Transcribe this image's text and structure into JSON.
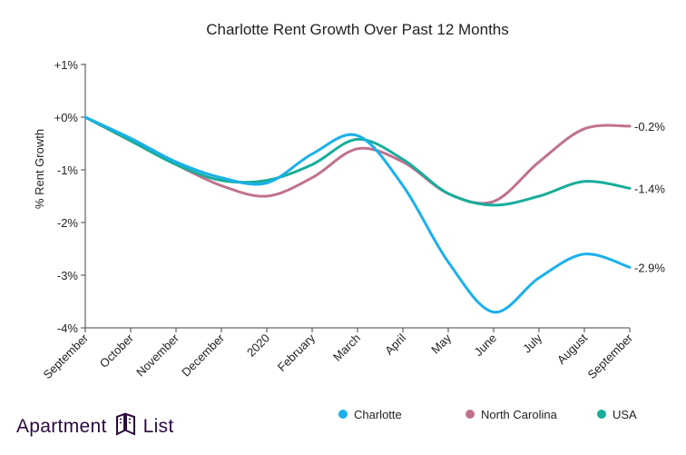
{
  "colors": {
    "Charlotte": "#1bb0ec",
    "North Carolina": "#c0728e",
    "USA": "#18ad9a"
  },
  "logo": {
    "word1": "Apartment",
    "word2": "List"
  },
  "chart_data": {
    "type": "line",
    "title": "Charlotte Rent Growth Over Past 12 Months",
    "xlabel": "",
    "ylabel": "% Rent Growth",
    "categories": [
      "September",
      "October",
      "November",
      "December",
      "2020",
      "February",
      "March",
      "April",
      "May",
      "June",
      "July",
      "August",
      "September"
    ],
    "ylim": [
      -4,
      1
    ],
    "yticks": [
      {
        "value": 1,
        "label": "+1%"
      },
      {
        "value": 0,
        "label": "+0%"
      },
      {
        "value": -1,
        "label": "-1%"
      },
      {
        "value": -2,
        "label": "-2%"
      },
      {
        "value": -3,
        "label": "-3%"
      },
      {
        "value": -4,
        "label": "-4%"
      }
    ],
    "grid": false,
    "legend_position": "bottom-right",
    "series": [
      {
        "name": "Charlotte",
        "values": [
          0,
          -0.4,
          -0.85,
          -1.15,
          -1.25,
          -0.7,
          -0.35,
          -1.3,
          -2.75,
          -3.7,
          -3.05,
          -2.6,
          -2.85
        ],
        "end_label": "-2.9%"
      },
      {
        "name": "North Carolina",
        "values": [
          0,
          -0.45,
          -0.9,
          -1.3,
          -1.5,
          -1.15,
          -0.6,
          -0.85,
          -1.45,
          -1.6,
          -0.85,
          -0.22,
          -0.17
        ],
        "end_label": "-0.2%"
      },
      {
        "name": "USA",
        "values": [
          0,
          -0.45,
          -0.9,
          -1.2,
          -1.2,
          -0.9,
          -0.42,
          -0.8,
          -1.45,
          -1.67,
          -1.5,
          -1.22,
          -1.35
        ],
        "end_label": "-1.4%"
      }
    ]
  }
}
